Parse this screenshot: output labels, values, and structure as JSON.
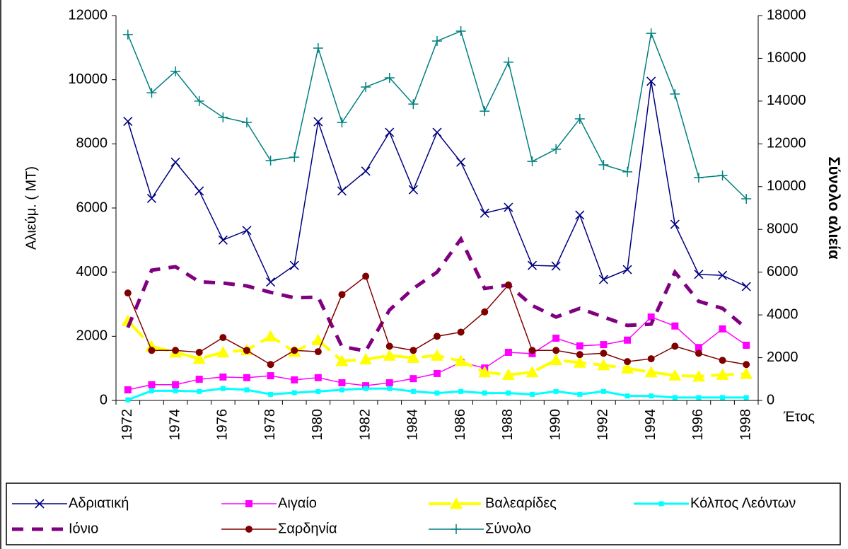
{
  "chart_data": {
    "type": "line",
    "y_label": "Αλιεύμ. ( MT)",
    "y2_label": "Σύνολο αλιεία",
    "x_label": "Έτος",
    "categories": [
      "1972",
      null,
      "1974",
      null,
      "1976",
      null,
      "1978",
      null,
      "1980",
      null,
      "1982",
      null,
      "1984",
      null,
      "1986",
      null,
      "1988",
      null,
      "1990",
      null,
      "1992",
      null,
      "1994",
      null,
      "1996",
      null,
      "1998"
    ],
    "ylim": [
      0,
      12000
    ],
    "yticks": [
      0,
      2000,
      4000,
      6000,
      8000,
      10000,
      12000
    ],
    "y2lim": [
      0,
      18000
    ],
    "y2ticks": [
      0,
      2000,
      4000,
      6000,
      8000,
      10000,
      12000,
      14000,
      16000,
      18000
    ],
    "legend": "bottom",
    "series": [
      {
        "name": "Αδριατική",
        "color": "#000080",
        "marker": "x",
        "line": "solid",
        "values": [
          8700,
          6300,
          7430,
          6530,
          5000,
          5300,
          3690,
          4210,
          8690,
          6530,
          7150,
          8360,
          6570,
          8360,
          7430,
          5840,
          6020,
          4210,
          4190,
          5780,
          3770,
          4080,
          9950,
          5490,
          3930,
          3900,
          3550
        ]
      },
      {
        "name": "Αιγαίο",
        "color": "#ff00ff",
        "marker": "square",
        "line": "solid",
        "values": [
          330,
          490,
          490,
          660,
          730,
          710,
          770,
          640,
          710,
          550,
          460,
          550,
          680,
          840,
          1190,
          1010,
          1500,
          1460,
          1940,
          1700,
          1740,
          1880,
          2600,
          2320,
          1650,
          2230,
          1720
        ]
      },
      {
        "name": "Βαλεαρίδες",
        "color": "#ffff00",
        "marker": "triangle",
        "line": "dashed",
        "values": [
          2480,
          1680,
          1500,
          1300,
          1500,
          1570,
          2000,
          1520,
          1880,
          1230,
          1280,
          1400,
          1330,
          1400,
          1230,
          880,
          800,
          880,
          1260,
          1180,
          1100,
          1000,
          880,
          780,
          750,
          800,
          830
        ]
      },
      {
        "name": "Κόλπος Λεόντων",
        "color": "#00ffff",
        "marker": "small-square",
        "line": "solid",
        "values": [
          20,
          300,
          300,
          280,
          370,
          330,
          190,
          240,
          280,
          330,
          370,
          370,
          280,
          230,
          280,
          230,
          230,
          190,
          280,
          190,
          280,
          140,
          140,
          90,
          90,
          90,
          90
        ]
      },
      {
        "name": "Ιόνιο",
        "color": "#800080",
        "marker": "none",
        "line": "dotted",
        "values": [
          2270,
          4060,
          4170,
          3700,
          3660,
          3570,
          3370,
          3200,
          3220,
          1680,
          1540,
          2820,
          3490,
          4000,
          5030,
          3490,
          3600,
          2960,
          2600,
          2870,
          2600,
          2340,
          2380,
          4000,
          3090,
          2870,
          2250
        ]
      },
      {
        "name": "Σαρδηνία",
        "color": "#800000",
        "marker": "circle",
        "line": "solid",
        "values": [
          3350,
          1560,
          1560,
          1500,
          1960,
          1560,
          1120,
          1560,
          1520,
          3300,
          3870,
          1690,
          1560,
          2000,
          2130,
          2760,
          3600,
          1560,
          1560,
          1430,
          1470,
          1210,
          1300,
          1690,
          1470,
          1250,
          1120
        ]
      },
      {
        "name": "Σύνολο",
        "color": "#008080",
        "marker": "plus",
        "line": "solid",
        "axis": "y2",
        "values": [
          17110,
          14390,
          15390,
          14000,
          13240,
          13000,
          11220,
          11380,
          16480,
          13000,
          14660,
          15090,
          13860,
          16810,
          17270,
          13530,
          15820,
          11180,
          11750,
          13170,
          11020,
          10690,
          17170,
          14330,
          10420,
          10520,
          9430
        ]
      }
    ]
  }
}
